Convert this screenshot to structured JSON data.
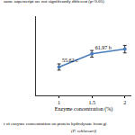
{
  "chart_data": {
    "type": "line",
    "x_label": "Enzyme concentration (%)",
    "note": "same superscript are not significantly different (p<0.05)",
    "caption": [
      "t of enzyme concentration on protein hydrolysate from gi",
      "(P. schlesseri)"
    ],
    "x": [
      1,
      1.5,
      2
    ],
    "values": [
      55.62,
      61.97,
      64.2
    ],
    "errors": [
      1.5,
      1.6,
      1.8
    ],
    "data_labels": true,
    "value_labels": [
      "55.62 c",
      "61.97 b",
      null
    ],
    "color": "#4a7ebb",
    "marker": "circle",
    "xlim": [
      0.65,
      2.1
    ],
    "xticks": [
      1,
      {
        "value": 1.5,
        "label": "1.5"
      },
      2
    ],
    "ylim": [
      42,
      80
    ],
    "tick_labels": "x",
    "grid": false
  }
}
